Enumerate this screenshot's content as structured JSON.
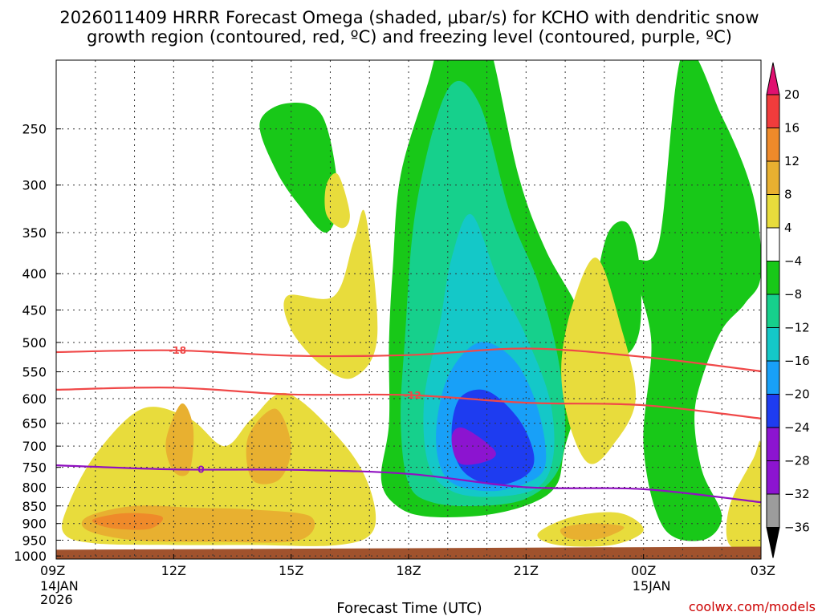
{
  "chart_data": {
    "type": "heatmap",
    "title_line1": "2026011409 HRRR Forecast Omega (shaded, μbar/s) for KCHO with dendritic snow",
    "title_line2": "growth region (contoured, red, ºC) and freezing level (contoured, purple, ºC)",
    "xlabel": "Forecast Time (UTC)",
    "credit": "coolwx.com/models",
    "x_ticks": [
      {
        "hour": 0,
        "label": "09Z",
        "sub1": "14JAN",
        "sub2": "2026"
      },
      {
        "hour": 3,
        "label": "12Z",
        "sub1": "",
        "sub2": ""
      },
      {
        "hour": 6,
        "label": "15Z",
        "sub1": "",
        "sub2": ""
      },
      {
        "hour": 9,
        "label": "18Z",
        "sub1": "",
        "sub2": ""
      },
      {
        "hour": 12,
        "label": "21Z",
        "sub1": "",
        "sub2": ""
      },
      {
        "hour": 15,
        "label": "00Z",
        "sub1": "15JAN",
        "sub2": ""
      },
      {
        "hour": 18,
        "label": "03Z",
        "sub1": "",
        "sub2": ""
      }
    ],
    "y_ticks": [
      "250",
      "300",
      "350",
      "400",
      "450",
      "500",
      "550",
      "600",
      "650",
      "700",
      "750",
      "800",
      "850",
      "900",
      "950",
      "1000"
    ],
    "y_pressure": [
      250,
      300,
      350,
      400,
      450,
      500,
      550,
      600,
      650,
      700,
      750,
      800,
      850,
      900,
      950,
      1000
    ],
    "ylim_hpa": [
      200,
      1010
    ],
    "xlim_hours": [
      0,
      18
    ],
    "colorbar": {
      "levels": [
        "20",
        "16",
        "12",
        "8",
        "4",
        "−4",
        "−8",
        "−12",
        "−16",
        "−20",
        "−24",
        "−28",
        "−32",
        "−36"
      ],
      "colors": [
        "#d9006e",
        "#ee3a3a",
        "#ef8a2a",
        "#e8b030",
        "#e8dc3c",
        "#ffffff",
        "#18c818",
        "#16d08c",
        "#14c8c8",
        "#18a0f8",
        "#1e3cf0",
        "#8c14d0",
        "#9c9c9c",
        "#000000"
      ],
      "top_color": "#e01070",
      "bottom_color": "#000000"
    },
    "contours": [
      {
        "name": "dgz-minus18",
        "label": "-18",
        "color": "#f04848",
        "points": [
          [
            0,
            516
          ],
          [
            3,
            513
          ],
          [
            6,
            522
          ],
          [
            9,
            521
          ],
          [
            12,
            510
          ],
          [
            15,
            524
          ],
          [
            18,
            549
          ]
        ],
        "label_at": 3.1
      },
      {
        "name": "dgz-minus12",
        "label": "-12",
        "color": "#f04848",
        "points": [
          [
            0,
            583
          ],
          [
            3,
            579
          ],
          [
            6,
            592
          ],
          [
            9,
            593
          ],
          [
            12,
            608
          ],
          [
            15,
            613
          ],
          [
            18,
            640
          ]
        ],
        "label_at": 9.1
      },
      {
        "name": "freezing-level",
        "label": "0",
        "color": "#9010c0",
        "points": [
          [
            0,
            745
          ],
          [
            3,
            755
          ],
          [
            6,
            756
          ],
          [
            9,
            766
          ],
          [
            12,
            800
          ],
          [
            15,
            805
          ],
          [
            18,
            840
          ]
        ],
        "label_at": 3.7
      }
    ],
    "omega_regions": [
      {
        "name": "upward-green-main",
        "value": -6,
        "color": "#18c818",
        "points": [
          [
            8.8,
            290
          ],
          [
            9.5,
            215
          ],
          [
            10.2,
            160
          ],
          [
            11,
            185
          ],
          [
            11.8,
            290
          ],
          [
            12.5,
            370
          ],
          [
            13.4,
            460
          ],
          [
            13.5,
            560
          ],
          [
            13,
            700
          ],
          [
            12.8,
            790
          ],
          [
            12.2,
            840
          ],
          [
            11,
            875
          ],
          [
            9.5,
            880
          ],
          [
            8.7,
            850
          ],
          [
            8.3,
            780
          ],
          [
            8.5,
            650
          ],
          [
            8.5,
            500
          ],
          [
            8.6,
            390
          ]
        ]
      },
      {
        "name": "upward-teal",
        "value": -10,
        "color": "#16d08c",
        "points": [
          [
            9.2,
            320
          ],
          [
            10,
            220
          ],
          [
            10.8,
            230
          ],
          [
            11.6,
            330
          ],
          [
            12.3,
            410
          ],
          [
            12.8,
            520
          ],
          [
            13,
            650
          ],
          [
            12.8,
            760
          ],
          [
            12,
            830
          ],
          [
            10.8,
            850
          ],
          [
            9.6,
            840
          ],
          [
            9,
            790
          ],
          [
            8.8,
            650
          ],
          [
            8.9,
            500
          ]
        ]
      },
      {
        "name": "upward-cyan",
        "value": -14,
        "color": "#14c8c8",
        "points": [
          [
            10.1,
            380
          ],
          [
            10.6,
            330
          ],
          [
            11.3,
            410
          ],
          [
            12,
            490
          ],
          [
            12.6,
            600
          ],
          [
            12.7,
            720
          ],
          [
            12.3,
            800
          ],
          [
            11.2,
            825
          ],
          [
            10.1,
            810
          ],
          [
            9.5,
            740
          ],
          [
            9.4,
            600
          ],
          [
            9.8,
            470
          ]
        ]
      },
      {
        "name": "upward-lightblue",
        "value": -18,
        "color": "#18a0f8",
        "points": [
          [
            10,
            560
          ],
          [
            10.8,
            500
          ],
          [
            11.7,
            530
          ],
          [
            12.3,
            620
          ],
          [
            12.5,
            740
          ],
          [
            12,
            790
          ],
          [
            11,
            810
          ],
          [
            10,
            780
          ],
          [
            9.7,
            680
          ]
        ]
      },
      {
        "name": "upward-blue",
        "value": -22,
        "color": "#1e3cf0",
        "points": [
          [
            10.3,
            600
          ],
          [
            11,
            585
          ],
          [
            11.8,
            640
          ],
          [
            12.2,
            720
          ],
          [
            12,
            770
          ],
          [
            11.2,
            795
          ],
          [
            10.4,
            760
          ],
          [
            10.1,
            680
          ]
        ]
      },
      {
        "name": "upward-purple",
        "value": -26,
        "color": "#8c14d0",
        "points": [
          [
            10.1,
            680
          ],
          [
            10.4,
            660
          ],
          [
            11.2,
            710
          ],
          [
            11,
            735
          ],
          [
            10.3,
            740
          ]
        ]
      },
      {
        "name": "upward-green-15z",
        "value": -6,
        "color": "#18c818",
        "points": [
          [
            5.9,
            230
          ],
          [
            6.8,
            240
          ],
          [
            7.2,
            310
          ],
          [
            6.9,
            350
          ],
          [
            6.2,
            320
          ],
          [
            5.6,
            285
          ],
          [
            5.2,
            245
          ]
        ]
      },
      {
        "name": "upward-green-right",
        "value": -6,
        "color": "#18c818",
        "points": [
          [
            15.4,
            360
          ],
          [
            16,
            195
          ],
          [
            17,
            240
          ],
          [
            17.8,
            310
          ],
          [
            18,
            400
          ],
          [
            17.6,
            440
          ],
          [
            17,
            480
          ],
          [
            16.5,
            560
          ],
          [
            16.3,
            640
          ],
          [
            16.5,
            760
          ],
          [
            17,
            880
          ],
          [
            16.5,
            950
          ],
          [
            15.5,
            910
          ],
          [
            15,
            700
          ],
          [
            15.2,
            500
          ],
          [
            14.8,
            390
          ]
        ]
      },
      {
        "name": "upward-green-late",
        "value": -6,
        "color": "#18c818",
        "points": [
          [
            14.1,
            350
          ],
          [
            14.6,
            340
          ],
          [
            14.9,
            390
          ],
          [
            14.9,
            480
          ],
          [
            14.5,
            520
          ],
          [
            14.0,
            470
          ],
          [
            13.8,
            420
          ]
        ]
      },
      {
        "name": "downward-yellow-left",
        "value": 6,
        "color": "#e8dc3c",
        "points": [
          [
            0.3,
            850
          ],
          [
            1,
            720
          ],
          [
            2.2,
            620
          ],
          [
            3.4,
            640
          ],
          [
            4.3,
            700
          ],
          [
            5,
            640
          ],
          [
            5.9,
            590
          ],
          [
            7.3,
            690
          ],
          [
            8,
            800
          ],
          [
            8.1,
            920
          ],
          [
            7.2,
            965
          ],
          [
            5,
            965
          ],
          [
            3,
            965
          ],
          [
            1,
            960
          ],
          [
            0.2,
            930
          ]
        ]
      },
      {
        "name": "downward-yellow-upper",
        "value": 6,
        "color": "#e8dc3c",
        "points": [
          [
            5.9,
            430
          ],
          [
            7.1,
            430
          ],
          [
            7.6,
            360
          ],
          [
            7.9,
            330
          ],
          [
            8.2,
            490
          ],
          [
            7.6,
            560
          ],
          [
            6.8,
            540
          ],
          [
            6.0,
            480
          ]
        ]
      },
      {
        "name": "downward-yellow-top",
        "value": 6,
        "color": "#e8dc3c",
        "points": [
          [
            6.9,
            300
          ],
          [
            7.2,
            290
          ],
          [
            7.5,
            330
          ],
          [
            7.3,
            345
          ],
          [
            6.9,
            330
          ]
        ]
      },
      {
        "name": "downward-yellow-21z",
        "value": 6,
        "color": "#e8dc3c",
        "points": [
          [
            13.2,
            440
          ],
          [
            13.8,
            380
          ],
          [
            14.4,
            470
          ],
          [
            14.8,
            600
          ],
          [
            14.2,
            700
          ],
          [
            13.6,
            740
          ],
          [
            13.1,
            650
          ],
          [
            12.9,
            540
          ]
        ]
      },
      {
        "name": "downward-yellow-22z",
        "value": 6,
        "color": "#e8dc3c",
        "points": [
          [
            12.3,
            930
          ],
          [
            13.2,
            880
          ],
          [
            14.4,
            870
          ],
          [
            15,
            920
          ],
          [
            14.2,
            965
          ],
          [
            12.8,
            965
          ]
        ]
      },
      {
        "name": "downward-yellow-right",
        "value": 6,
        "color": "#e8dc3c",
        "points": [
          [
            17.2,
            850
          ],
          [
            17.8,
            730
          ],
          [
            18,
            700
          ],
          [
            18,
            965
          ],
          [
            17.2,
            965
          ]
        ]
      },
      {
        "name": "downward-gold-left",
        "value": 10,
        "color": "#e8b030",
        "points": [
          [
            0.8,
            880
          ],
          [
            2,
            850
          ],
          [
            3.5,
            855
          ],
          [
            5,
            860
          ],
          [
            6.5,
            880
          ],
          [
            6.2,
            950
          ],
          [
            4,
            955
          ],
          [
            2,
            950
          ],
          [
            0.8,
            920
          ]
        ]
      },
      {
        "name": "downward-gold-12z",
        "value": 10,
        "color": "#e8b030",
        "points": [
          [
            2.8,
            690
          ],
          [
            3.2,
            610
          ],
          [
            3.5,
            660
          ],
          [
            3.4,
            760
          ],
          [
            3.0,
            760
          ]
        ]
      },
      {
        "name": "downward-gold-14z",
        "value": 10,
        "color": "#e8b030",
        "points": [
          [
            4.9,
            680
          ],
          [
            5.6,
            620
          ],
          [
            6.0,
            700
          ],
          [
            5.7,
            780
          ],
          [
            5.0,
            780
          ]
        ]
      },
      {
        "name": "downward-gold-22z",
        "value": 10,
        "color": "#e8b030",
        "points": [
          [
            12.9,
            915
          ],
          [
            13.6,
            900
          ],
          [
            14.5,
            910
          ],
          [
            13.9,
            945
          ],
          [
            13.1,
            945
          ]
        ]
      },
      {
        "name": "downward-orange-left",
        "value": 14,
        "color": "#ef8a2a",
        "points": [
          [
            1,
            885
          ],
          [
            1.8,
            870
          ],
          [
            2.7,
            880
          ],
          [
            2.4,
            915
          ],
          [
            1.5,
            915
          ],
          [
            1,
            900
          ]
        ]
      }
    ],
    "ground_color": "#a0522d"
  }
}
